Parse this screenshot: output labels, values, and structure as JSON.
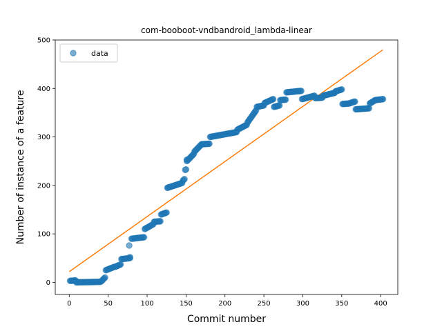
{
  "chart_data": {
    "type": "scatter",
    "title": "com-booboot-vndbandroid_lambda-linear",
    "xlabel": "Commit number",
    "ylabel": "Number of instance of a feature",
    "xlim": [
      -18,
      422
    ],
    "ylim": [
      -25,
      500
    ],
    "xticks": [
      0,
      50,
      100,
      150,
      200,
      250,
      300,
      350,
      400
    ],
    "yticks": [
      0,
      100,
      200,
      300,
      400,
      500
    ],
    "grid": false,
    "legend": {
      "placement": "top-left",
      "entries": [
        "data"
      ]
    },
    "colors": {
      "data": "#1f77b4",
      "fit": "#ff7f0e"
    },
    "series": [
      {
        "name": "data",
        "kind": "scatter",
        "segments": [
          {
            "x_from": 1,
            "x_to": 8,
            "y_from": 3,
            "y_to": 4
          },
          {
            "x_from": 9,
            "x_to": 40,
            "y_from": 0,
            "y_to": 1
          },
          {
            "x_from": 41,
            "x_to": 46,
            "y_from": 2,
            "y_to": 10
          },
          {
            "x_from": 47,
            "x_to": 58,
            "y_from": 25,
            "y_to": 32
          },
          {
            "x_from": 59,
            "x_to": 66,
            "y_from": 32,
            "y_to": 37
          },
          {
            "x_from": 67,
            "x_to": 78,
            "y_from": 48,
            "y_to": 50
          },
          {
            "x_from": 80,
            "x_to": 96,
            "y_from": 90,
            "y_to": 93
          },
          {
            "x_from": 97,
            "x_to": 108,
            "y_from": 110,
            "y_to": 120
          },
          {
            "x_from": 109,
            "x_to": 117,
            "y_from": 125,
            "y_to": 126
          },
          {
            "x_from": 118,
            "x_to": 125,
            "y_from": 140,
            "y_to": 144
          },
          {
            "x_from": 126,
            "x_to": 145,
            "y_from": 195,
            "y_to": 205
          },
          {
            "x_from": 146,
            "x_to": 148,
            "y_from": 210,
            "y_to": 213
          },
          {
            "x_from": 149,
            "x_to": 150,
            "y_from": 232,
            "y_to": 233
          },
          {
            "x_from": 151,
            "x_to": 160,
            "y_from": 250,
            "y_to": 265
          },
          {
            "x_from": 161,
            "x_to": 170,
            "y_from": 270,
            "y_to": 285
          },
          {
            "x_from": 171,
            "x_to": 180,
            "y_from": 285,
            "y_to": 286
          },
          {
            "x_from": 181,
            "x_to": 215,
            "y_from": 300,
            "y_to": 310
          },
          {
            "x_from": 216,
            "x_to": 228,
            "y_from": 315,
            "y_to": 325
          },
          {
            "x_from": 229,
            "x_to": 240,
            "y_from": 330,
            "y_to": 355
          },
          {
            "x_from": 241,
            "x_to": 250,
            "y_from": 362,
            "y_to": 365
          },
          {
            "x_from": 251,
            "x_to": 262,
            "y_from": 370,
            "y_to": 378
          },
          {
            "x_from": 263,
            "x_to": 270,
            "y_from": 362,
            "y_to": 365
          },
          {
            "x_from": 271,
            "x_to": 278,
            "y_from": 376,
            "y_to": 377
          },
          {
            "x_from": 279,
            "x_to": 298,
            "y_from": 392,
            "y_to": 395
          },
          {
            "x_from": 299,
            "x_to": 315,
            "y_from": 378,
            "y_to": 385
          },
          {
            "x_from": 316,
            "x_to": 325,
            "y_from": 380,
            "y_to": 381
          },
          {
            "x_from": 326,
            "x_to": 341,
            "y_from": 385,
            "y_to": 391
          },
          {
            "x_from": 342,
            "x_to": 350,
            "y_from": 394,
            "y_to": 398
          },
          {
            "x_from": 351,
            "x_to": 360,
            "y_from": 368,
            "y_to": 369
          },
          {
            "x_from": 361,
            "x_to": 367,
            "y_from": 370,
            "y_to": 373
          },
          {
            "x_from": 368,
            "x_to": 385,
            "y_from": 357,
            "y_to": 359
          },
          {
            "x_from": 386,
            "x_to": 392,
            "y_from": 369,
            "y_to": 375
          },
          {
            "x_from": 393,
            "x_to": 403,
            "y_from": 376,
            "y_to": 378
          }
        ],
        "extra_points": [
          {
            "x": 77,
            "y": 76
          },
          {
            "x": 78,
            "y": 52
          },
          {
            "x": 151,
            "y": 253
          }
        ]
      },
      {
        "name": "fit",
        "kind": "line",
        "points": [
          {
            "x": 0,
            "y": 22
          },
          {
            "x": 403,
            "y": 480
          }
        ]
      }
    ]
  }
}
